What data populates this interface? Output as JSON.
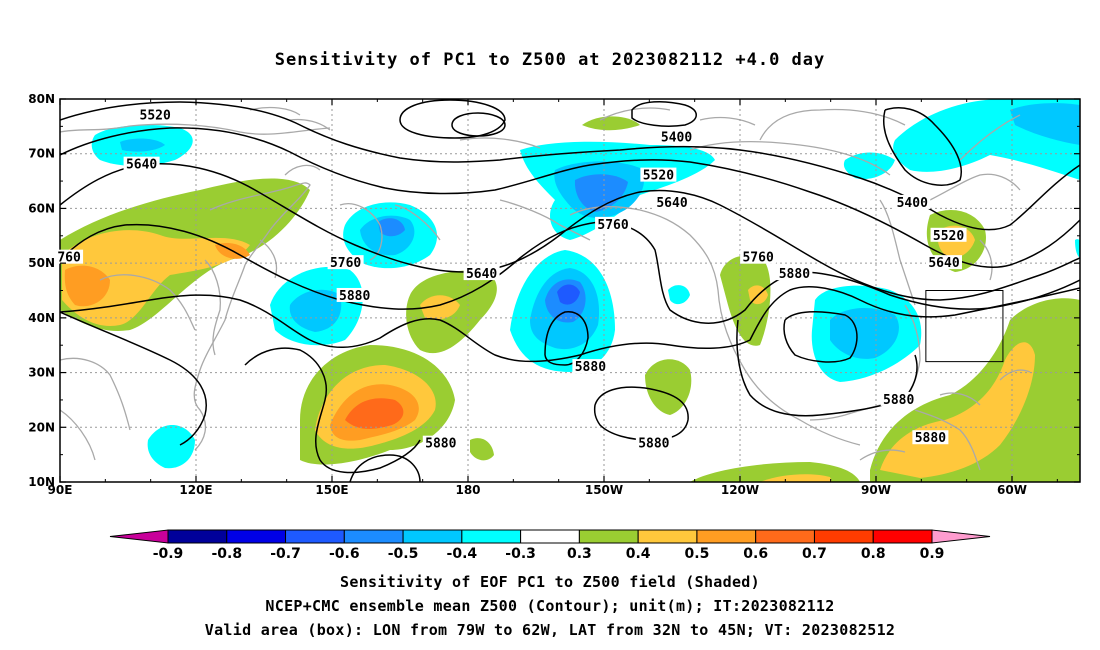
{
  "title": "Sensitivity of PC1 to Z500 at 2023082112 +4.0 day",
  "map": {
    "lat_labels": [
      "80N",
      "70N",
      "60N",
      "50N",
      "40N",
      "30N",
      "20N",
      "10N"
    ],
    "lon_labels": [
      "90E",
      "120E",
      "150E",
      "180",
      "150W",
      "120W",
      "90W",
      "60W"
    ],
    "contour_labels": [
      {
        "text": "5520",
        "lon": 111,
        "lat": 77
      },
      {
        "text": "5640",
        "lon": 108,
        "lat": 68
      },
      {
        "text": "5400",
        "lon": -134,
        "lat": 73
      },
      {
        "text": "5520",
        "lon": -138,
        "lat": 66
      },
      {
        "text": "5640",
        "lon": -135,
        "lat": 61
      },
      {
        "text": "5760",
        "lon": -148,
        "lat": 57
      },
      {
        "text": "5760",
        "lon": -116,
        "lat": 51
      },
      {
        "text": "5400",
        "lon": -82,
        "lat": 61
      },
      {
        "text": "5520",
        "lon": -74,
        "lat": 55
      },
      {
        "text": "5640",
        "lon": -75,
        "lat": 50
      },
      {
        "text": "760",
        "lon": 92,
        "lat": 51
      },
      {
        "text": "5760",
        "lon": 153,
        "lat": 50
      },
      {
        "text": "5880",
        "lon": 155,
        "lat": 44
      },
      {
        "text": "5640",
        "lon": 183,
        "lat": 48
      },
      {
        "text": "5880",
        "lon": -108,
        "lat": 48
      },
      {
        "text": "5880",
        "lon": -153,
        "lat": 31
      },
      {
        "text": "5880",
        "lon": -85,
        "lat": 25
      },
      {
        "text": "5880",
        "lon": -139,
        "lat": 17
      },
      {
        "text": "5880",
        "lon": 174,
        "lat": 17
      },
      {
        "text": "5880",
        "lon": -78,
        "lat": 18
      }
    ],
    "valid_box": {
      "lon_min": -79,
      "lon_max": -62,
      "lat_min": 32,
      "lat_max": 45
    }
  },
  "colorbar": {
    "labels": [
      "-0.9",
      "-0.8",
      "-0.7",
      "-0.6",
      "-0.5",
      "-0.4",
      "-0.3",
      "0.3",
      "0.4",
      "0.5",
      "0.6",
      "0.7",
      "0.8",
      "0.9"
    ],
    "colors": [
      "#00009a",
      "#0000e6",
      "#1e5aff",
      "#1c8cff",
      "#00c8ff",
      "#00ffff",
      "#ffffff",
      "#9acd32",
      "#ffc83c",
      "#ff9d22",
      "#ff6a1a",
      "#ff3c00",
      "#ff0000"
    ],
    "under_color": "#c8009a",
    "over_color": "#ff9ccf"
  },
  "caption": {
    "line1": "Sensitivity of EOF PC1 to Z500 field (Shaded)",
    "line2": "NCEP+CMC ensemble mean Z500 (Contour); unit(m); IT:2023082112",
    "line3": "Valid area (box): LON from 79W to 62W, LAT from 32N to 45N; VT: 2023082512"
  }
}
